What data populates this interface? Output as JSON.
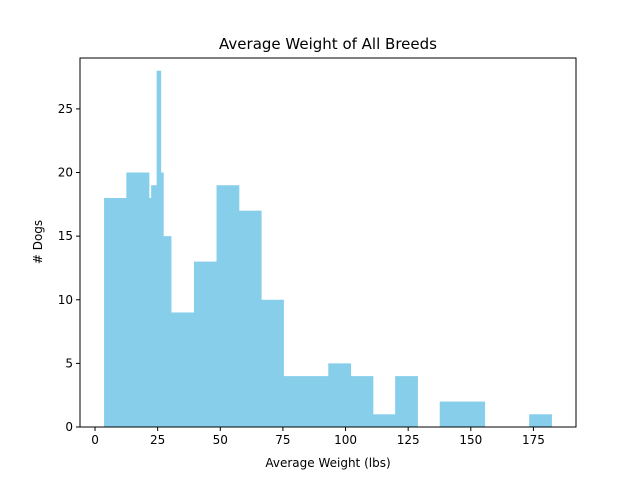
{
  "chart_data": {
    "type": "bar",
    "title": "Average Weight of All Breeds",
    "xlabel": "Average Weight (lbs)",
    "ylabel": "# Dogs",
    "xlim": [
      -6,
      192
    ],
    "ylim": [
      0,
      29
    ],
    "xticks": [
      0,
      25,
      50,
      75,
      100,
      125,
      150,
      175
    ],
    "yticks": [
      0,
      5,
      10,
      15,
      20,
      25
    ],
    "grid": false,
    "colors": {
      "bar": "#87ceeb",
      "axis": "#000000",
      "background": "#ffffff"
    },
    "bins": [
      {
        "x0": 3.6,
        "x1": 12.5,
        "count": 18
      },
      {
        "x0": 12.5,
        "x1": 21.5,
        "count": 20
      },
      {
        "x0": 21.5,
        "x1": 22.4,
        "count": 18
      },
      {
        "x0": 22.4,
        "x1": 24.6,
        "count": 19
      },
      {
        "x0": 24.6,
        "x1": 26.2,
        "count": 28
      },
      {
        "x0": 26.2,
        "x1": 27.2,
        "count": 20
      },
      {
        "x0": 27.2,
        "x1": 30.3,
        "count": 15
      },
      {
        "x0": 30.3,
        "x1": 39.5,
        "count": 9
      },
      {
        "x0": 39.5,
        "x1": 48.5,
        "count": 13
      },
      {
        "x0": 48.5,
        "x1": 57.4,
        "count": 19
      },
      {
        "x0": 57.4,
        "x1": 66.3,
        "count": 17
      },
      {
        "x0": 66.3,
        "x1": 75.2,
        "count": 10
      },
      {
        "x0": 75.2,
        "x1": 93.1,
        "count": 4
      },
      {
        "x0": 93.1,
        "x1": 102.0,
        "count": 5
      },
      {
        "x0": 102.0,
        "x1": 110.9,
        "count": 4
      },
      {
        "x0": 110.9,
        "x1": 119.8,
        "count": 1
      },
      {
        "x0": 119.8,
        "x1": 128.7,
        "count": 4
      },
      {
        "x0": 137.6,
        "x1": 155.5,
        "count": 2
      },
      {
        "x0": 173.3,
        "x1": 182.2,
        "count": 1
      }
    ]
  }
}
